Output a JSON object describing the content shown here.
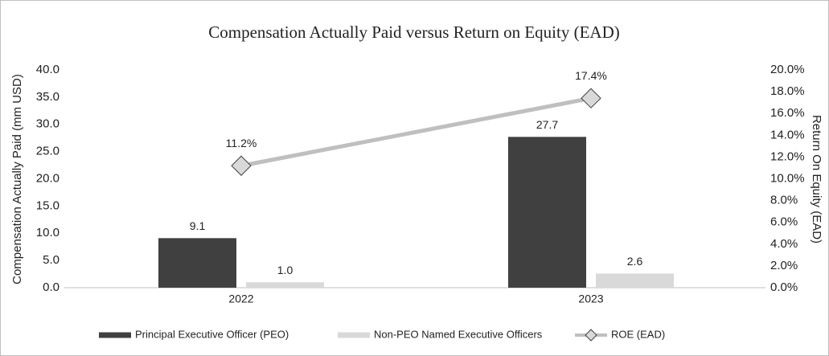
{
  "chart_data": {
    "type": "bar",
    "title": "Compensation Actually Paid versus Return on Equity (EAD)",
    "y_label": "Compensation Actually Paid (mm USD)",
    "y2_label": "Return On Equity (EAD)",
    "categories": [
      "2022",
      "2023"
    ],
    "series": [
      {
        "name": "Principal Executive Officer (PEO)",
        "color": "#404040",
        "values": [
          9.1,
          27.7
        ],
        "value_labels": [
          "9.1",
          "27.7"
        ]
      },
      {
        "name": "Non-PEO Named Executive Officers",
        "color": "#d9d9d9",
        "values": [
          1.0,
          2.6
        ],
        "value_labels": [
          "1.0",
          "2.6"
        ]
      },
      {
        "name": "ROE (EAD)",
        "type": "line",
        "axis": "y2",
        "color": "#bfbfbf",
        "values": [
          11.2,
          17.4
        ],
        "value_labels": [
          "11.2%",
          "17.4%"
        ]
      }
    ],
    "ylim": [
      0,
      40
    ],
    "yticks": [
      {
        "value": 0,
        "label": "0.0"
      },
      {
        "value": 5,
        "label": "5.0"
      },
      {
        "value": 10,
        "label": "10.0"
      },
      {
        "value": 15,
        "label": "15.0"
      },
      {
        "value": 20,
        "label": "20.0"
      },
      {
        "value": 25,
        "label": "25.0"
      },
      {
        "value": 30,
        "label": "30.0"
      },
      {
        "value": 35,
        "label": "35.0"
      },
      {
        "value": 40,
        "label": "40.0"
      }
    ],
    "y2lim": [
      0,
      20
    ],
    "y2ticks": [
      {
        "value": 0,
        "label": "0.0%"
      },
      {
        "value": 2,
        "label": "2.0%"
      },
      {
        "value": 4,
        "label": "4.0%"
      },
      {
        "value": 6,
        "label": "6.0%"
      },
      {
        "value": 8,
        "label": "8.0%"
      },
      {
        "value": 10,
        "label": "10.0%"
      },
      {
        "value": 12,
        "label": "12.0%"
      },
      {
        "value": 14,
        "label": "14.0%"
      },
      {
        "value": 16,
        "label": "16.0%"
      },
      {
        "value": 18,
        "label": "18.0%"
      },
      {
        "value": 20,
        "label": "20.0%"
      }
    ],
    "grid": false,
    "legend": "bottom"
  }
}
